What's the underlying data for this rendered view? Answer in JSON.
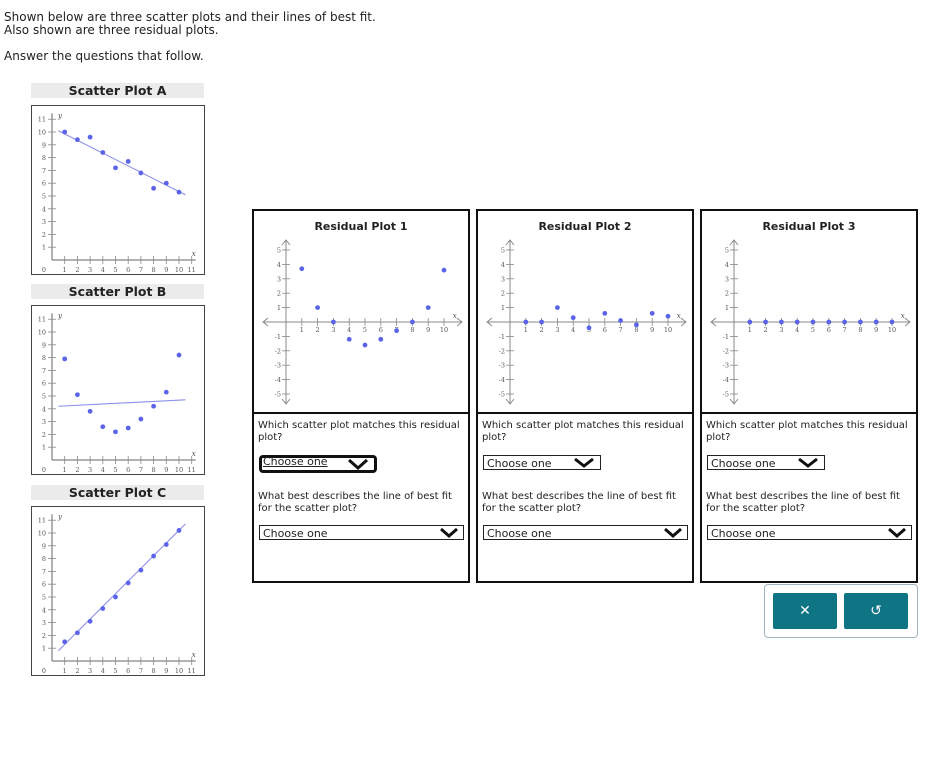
{
  "intro": {
    "line1": "Shown below are three scatter plots and their lines of best fit.",
    "line2": "Also shown are three residual plots.",
    "line3": "Answer the questions that follow."
  },
  "scatter_titles": [
    "Scatter Plot A",
    "Scatter Plot B",
    "Scatter Plot C"
  ],
  "residual_titles": [
    "Residual Plot 1",
    "Residual Plot 2",
    "Residual Plot 3"
  ],
  "questions": {
    "q1": "Which scatter plot matches this residual plot?",
    "q2": "What best describes the line of best fit for the scatter plot?"
  },
  "dropdown_placeholder": "Choose one",
  "buttons": {
    "clear": "✕",
    "reset": "↺"
  },
  "colors": {
    "point": "#5b64e8",
    "line": "#8a8fe8",
    "button": "#0f7585"
  },
  "chart_data": [
    {
      "type": "scatter",
      "title": "Scatter Plot A",
      "xlabel": "x",
      "ylabel": "y",
      "xlim": [
        0,
        11
      ],
      "ylim": [
        0,
        11
      ],
      "points": [
        [
          1,
          10
        ],
        [
          2,
          9.4
        ],
        [
          3,
          9.6
        ],
        [
          4,
          8.4
        ],
        [
          5,
          7.2
        ],
        [
          6,
          7.7
        ],
        [
          7,
          6.8
        ],
        [
          8,
          5.6
        ],
        [
          9,
          6.0
        ],
        [
          10,
          5.3
        ]
      ],
      "fit_line": [
        [
          0.5,
          10.1
        ],
        [
          10.5,
          5.1
        ]
      ]
    },
    {
      "type": "scatter",
      "title": "Scatter Plot B",
      "xlabel": "x",
      "ylabel": "y",
      "xlim": [
        0,
        11
      ],
      "ylim": [
        0,
        11
      ],
      "points": [
        [
          1,
          7.9
        ],
        [
          2,
          5.1
        ],
        [
          3,
          3.8
        ],
        [
          4,
          2.6
        ],
        [
          5,
          2.2
        ],
        [
          6,
          2.5
        ],
        [
          7,
          3.2
        ],
        [
          8,
          4.2
        ],
        [
          9,
          5.3
        ],
        [
          10,
          8.2
        ]
      ],
      "fit_line": [
        [
          0.5,
          4.2
        ],
        [
          10.5,
          4.7
        ]
      ]
    },
    {
      "type": "scatter",
      "title": "Scatter Plot C",
      "xlabel": "x",
      "ylabel": "y",
      "xlim": [
        0,
        11
      ],
      "ylim": [
        0,
        11
      ],
      "points": [
        [
          1,
          1.5
        ],
        [
          2,
          2.2
        ],
        [
          3,
          3.1
        ],
        [
          4,
          4.1
        ],
        [
          5,
          5.0
        ],
        [
          6,
          6.1
        ],
        [
          7,
          7.1
        ],
        [
          8,
          8.2
        ],
        [
          9,
          9.1
        ],
        [
          10,
          10.2
        ]
      ],
      "fit_line": [
        [
          0.5,
          0.8
        ],
        [
          10.5,
          10.7
        ]
      ]
    },
    {
      "type": "scatter",
      "title": "Residual Plot 1",
      "xlabel": "x",
      "xlim": [
        0,
        11
      ],
      "ylim": [
        -5,
        5
      ],
      "points": [
        [
          1,
          3.7
        ],
        [
          2,
          1.0
        ],
        [
          3,
          0
        ],
        [
          4,
          -1.2
        ],
        [
          5,
          -1.6
        ],
        [
          6,
          -1.2
        ],
        [
          7,
          -0.6
        ],
        [
          8,
          0
        ],
        [
          9,
          1.0
        ],
        [
          10,
          3.6
        ]
      ]
    },
    {
      "type": "scatter",
      "title": "Residual Plot 2",
      "xlabel": "x",
      "xlim": [
        0,
        11
      ],
      "ylim": [
        -5,
        5
      ],
      "points": [
        [
          1,
          0
        ],
        [
          2,
          0
        ],
        [
          3,
          1.0
        ],
        [
          4,
          0.3
        ],
        [
          5,
          -0.4
        ],
        [
          6,
          0.6
        ],
        [
          7,
          0.1
        ],
        [
          8,
          -0.2
        ],
        [
          9,
          0.6
        ],
        [
          10,
          0.4
        ]
      ]
    },
    {
      "type": "scatter",
      "title": "Residual Plot 3",
      "xlabel": "x",
      "xlim": [
        0,
        11
      ],
      "ylim": [
        -5,
        5
      ],
      "points": [
        [
          1,
          0
        ],
        [
          2,
          0
        ],
        [
          3,
          0
        ],
        [
          4,
          0
        ],
        [
          5,
          0
        ],
        [
          6,
          0
        ],
        [
          7,
          0
        ],
        [
          8,
          0
        ],
        [
          9,
          0
        ],
        [
          10,
          0
        ]
      ]
    }
  ]
}
